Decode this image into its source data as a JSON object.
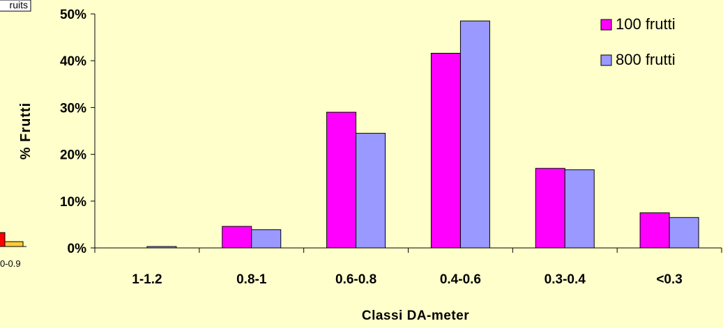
{
  "background_fragment": {
    "label_top": "ruits",
    "label_bottom": "0-0.9",
    "colors": [
      "#FF0000",
      "#FFCC33"
    ]
  },
  "chart_data": {
    "type": "bar",
    "title": "",
    "xlabel": "Classi DA-meter",
    "ylabel": "% Frutti",
    "categories": [
      "1-1.2",
      "0.8-1",
      "0.6-0.8",
      "0.4-0.6",
      "0.3-0.4",
      "<0.3"
    ],
    "series": [
      {
        "name": "100 frutti",
        "color": "#FF00FF",
        "values": [
          0,
          4.6,
          29.0,
          41.6,
          17.0,
          7.5
        ]
      },
      {
        "name": "800 frutti",
        "color": "#9999FF",
        "values": [
          0.3,
          3.9,
          24.5,
          48.5,
          16.7,
          6.5
        ]
      }
    ],
    "ylim": [
      0,
      50
    ],
    "yticks": [
      0,
      10,
      20,
      30,
      40,
      50
    ],
    "ytick_labels": [
      "0%",
      "10%",
      "20%",
      "30%",
      "40%",
      "50%"
    ],
    "grid": false,
    "legend_position": "top-right"
  }
}
